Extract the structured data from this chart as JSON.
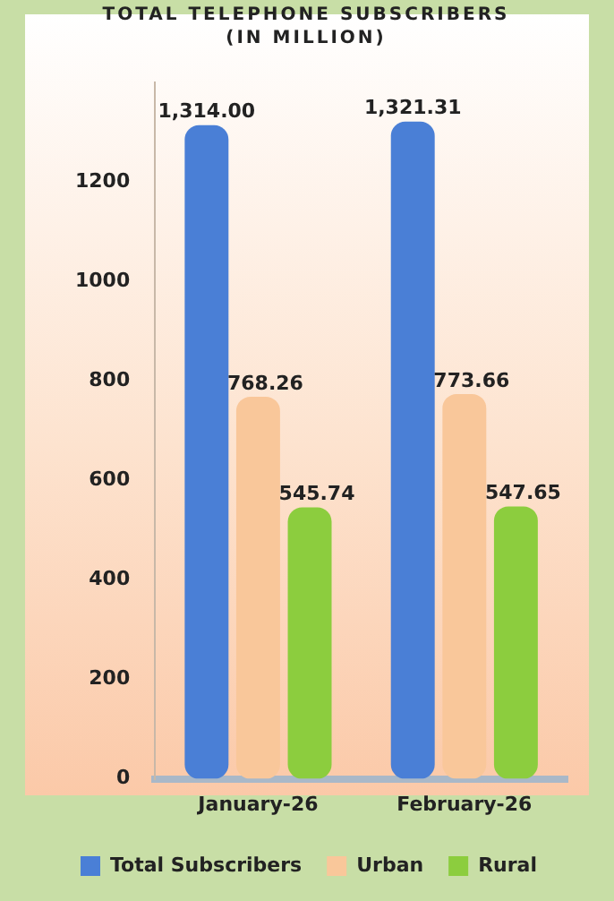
{
  "chart_data": {
    "type": "bar",
    "title": "TOTAL TELEPHONE SUBSCRIBERS (IN MILLION)",
    "categories": [
      "January-26",
      "February-26"
    ],
    "series": [
      {
        "name": "Total Subscribers",
        "color": "#4a7fd6",
        "values": [
          1314.0,
          1321.31
        ],
        "value_labels": [
          "1,314.00",
          "1,321.31"
        ]
      },
      {
        "name": "Urban",
        "color": "#f9c79a",
        "values": [
          768.26,
          773.66
        ],
        "value_labels": [
          "768.26",
          "773.66"
        ]
      },
      {
        "name": "Rural",
        "color": "#8ccd3e",
        "values": [
          545.74,
          547.65
        ],
        "value_labels": [
          "545.74",
          "547.65"
        ]
      }
    ],
    "ylim": [
      0,
      1400
    ],
    "yticks": [
      0,
      200,
      400,
      600,
      800,
      1000,
      1200
    ],
    "grid": false,
    "legend": "bottom"
  }
}
